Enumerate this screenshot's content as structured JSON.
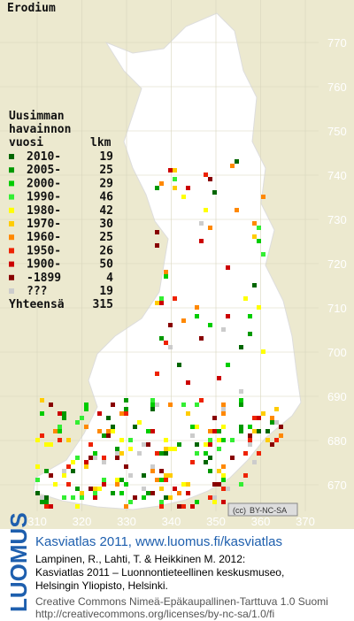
{
  "title": "Erodium",
  "grid": {
    "northing": [
      770,
      760,
      750,
      740,
      730,
      720,
      710,
      700,
      690,
      680,
      670
    ],
    "easting": [
      310,
      320,
      330,
      340,
      350,
      360,
      370
    ]
  },
  "legend": {
    "heading": [
      "Uusimman",
      "havainnon",
      "vuosi"
    ],
    "count_heading": "lkm",
    "items": [
      {
        "label": "2010-",
        "count": 19,
        "color": "#006600"
      },
      {
        "label": "2005-",
        "count": 25,
        "color": "#009900"
      },
      {
        "label": "2000-",
        "count": 29,
        "color": "#00cc00"
      },
      {
        "label": "1990-",
        "count": 46,
        "color": "#33ee33"
      },
      {
        "label": "1980-",
        "count": 42,
        "color": "#ffff00"
      },
      {
        "label": "1970-",
        "count": 30,
        "color": "#ffcc00"
      },
      {
        "label": "1960-",
        "count": 25,
        "color": "#ff8800"
      },
      {
        "label": "1950-",
        "count": 26,
        "color": "#ee2200"
      },
      {
        "label": "1900-",
        "count": 50,
        "color": "#cc0000"
      },
      {
        "label": "-1899",
        "count": 4,
        "color": "#880000"
      },
      {
        "label": "???",
        "count": 19,
        "color": "#cccccc"
      }
    ],
    "total_label": "Yhteensä",
    "total": 315
  },
  "badge": "BY-NC-SA",
  "footer": {
    "logo": "LUOMUS",
    "link": "Kasviatlas 2011, www.luomus.fi/kasviatlas",
    "lines": [
      "Lampinen, R., Lahti, T. & Heikkinen M. 2012:",
      "Kasviatlas 2011 – Luonnontieteellinen keskusmuseo,",
      "Helsingin Yliopisto, Helsinki."
    ],
    "license": [
      "Creative Commons Nimeä-Epäkaupallinen-Tarttuva 1.0 Suomi",
      "http://creativecommons.org/licenses/by-nc-sa/1.0/fi"
    ]
  }
}
